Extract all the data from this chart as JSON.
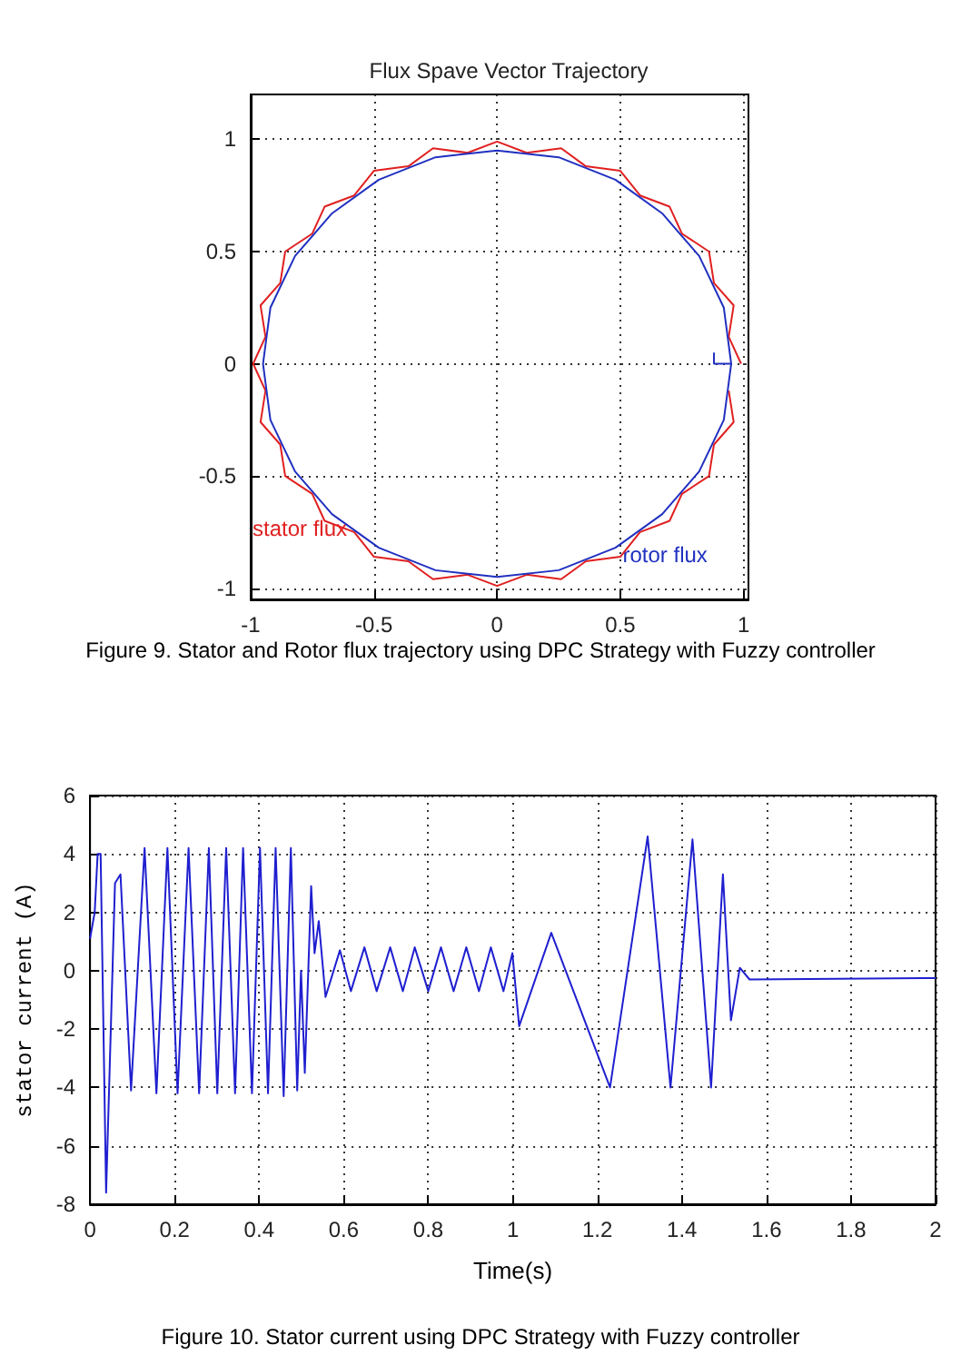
{
  "chart_data": [
    {
      "type": "line",
      "title": "Flux Spave Vector Trajectory",
      "annotations": [
        "Figure 9. Stator and Rotor flux trajectory using DPC Strategy with Fuzzy controller"
      ],
      "xlim": [
        -1,
        1.02
      ],
      "ylim": [
        -1.05,
        1.2
      ],
      "xticks": [
        -1,
        -0.5,
        0,
        0.5,
        1
      ],
      "yticks": [
        -1,
        -0.5,
        0,
        0.5,
        1
      ],
      "grid": true,
      "marker": "none",
      "line_style": "solid",
      "series": [
        {
          "name": "stator flux",
          "color": "#e02020",
          "x": [
            0.99,
            0.94,
            0.96,
            0.88,
            0.86,
            0.75,
            0.7,
            0.58,
            0.5,
            0.36,
            0.26,
            0.12,
            0,
            -0.12,
            -0.26,
            -0.36,
            -0.5,
            -0.58,
            -0.7,
            -0.75,
            -0.86,
            -0.88,
            -0.96,
            -0.94,
            -0.99,
            -0.94,
            -0.96,
            -0.88,
            -0.86,
            -0.75,
            -0.7,
            -0.58,
            -0.5,
            -0.36,
            -0.26,
            -0.12,
            0,
            0.12,
            0.26,
            0.36,
            0.5,
            0.58,
            0.7,
            0.75,
            0.86,
            0.88,
            0.96,
            0.94
          ],
          "values": [
            0,
            0.12,
            0.26,
            0.36,
            0.5,
            0.58,
            0.7,
            0.75,
            0.86,
            0.88,
            0.96,
            0.94,
            0.99,
            0.94,
            0.96,
            0.88,
            0.86,
            0.75,
            0.7,
            0.58,
            0.5,
            0.36,
            0.26,
            0.12,
            0,
            -0.12,
            -0.26,
            -0.36,
            -0.5,
            -0.58,
            -0.7,
            -0.75,
            -0.86,
            -0.88,
            -0.96,
            -0.94,
            -0.99,
            -0.94,
            -0.96,
            -0.88,
            -0.86,
            -0.75,
            -0.7,
            -0.58,
            -0.5,
            -0.36,
            -0.26,
            -0.12
          ]
        },
        {
          "name": "rotor flux",
          "color": "#2030c0",
          "x": [
            0.88,
            0.88,
            0.95,
            0.92,
            0.82,
            0.67,
            0.48,
            0.25,
            0,
            -0.25,
            -0.48,
            -0.67,
            -0.82,
            -0.92,
            -0.95,
            -0.92,
            -0.82,
            -0.67,
            -0.48,
            -0.25,
            0,
            0.25,
            0.48,
            0.67,
            0.82,
            0.92,
            0.95
          ],
          "values": [
            0.05,
            0,
            0,
            0.25,
            0.48,
            0.67,
            0.82,
            0.92,
            0.95,
            0.92,
            0.82,
            0.67,
            0.48,
            0.25,
            0,
            -0.25,
            -0.48,
            -0.67,
            -0.82,
            -0.92,
            -0.95,
            -0.92,
            -0.82,
            -0.67,
            -0.48,
            -0.25,
            0
          ]
        }
      ]
    },
    {
      "type": "line",
      "xlabel": "Time(s)",
      "ylabel": "stator current (A)",
      "annotations": [
        "Figure 10. Stator current using DPC Strategy with Fuzzy controller"
      ],
      "xlim": [
        0,
        2
      ],
      "ylim": [
        -8,
        6
      ],
      "xticks": [
        0,
        0.2,
        0.4,
        0.6,
        0.8,
        1,
        1.2,
        1.4,
        1.6,
        1.8,
        2
      ],
      "yticks": [
        -8,
        -6,
        -4,
        -2,
        0,
        2,
        4,
        6
      ],
      "grid": true,
      "marker": "none",
      "line_style": "solid",
      "series": [
        {
          "color": "#1f1fd0",
          "x": [
            0,
            0.011,
            0.018,
            0.025,
            0.038,
            0.059,
            0.072,
            0.097,
            0.129,
            0.157,
            0.183,
            0.207,
            0.233,
            0.258,
            0.281,
            0.301,
            0.322,
            0.343,
            0.362,
            0.383,
            0.402,
            0.421,
            0.439,
            0.458,
            0.475,
            0.49,
            0.499,
            0.508,
            0.523,
            0.531,
            0.541,
            0.557,
            0.591,
            0.617,
            0.649,
            0.678,
            0.71,
            0.74,
            0.768,
            0.8,
            0.83,
            0.86,
            0.89,
            0.92,
            0.948,
            0.978,
            0.999,
            1.015,
            1.091,
            1.23,
            1.319,
            1.373,
            1.425,
            1.469,
            1.497,
            1.516,
            1.537,
            1.56,
            2
          ],
          "values": [
            1.1,
            2,
            4,
            4,
            -7.6,
            3,
            3.3,
            -4.1,
            4.2,
            -4.2,
            4.2,
            -4.2,
            4.2,
            -4.2,
            4.2,
            -4.2,
            4.2,
            -4.2,
            4.2,
            -4.2,
            4.2,
            -4.2,
            4.2,
            -4.3,
            4.2,
            -4.1,
            0,
            -3.5,
            2.9,
            0.6,
            1.7,
            -0.9,
            0.7,
            -0.7,
            0.8,
            -0.7,
            0.8,
            -0.7,
            0.8,
            -0.7,
            0.8,
            -0.7,
            0.8,
            -0.7,
            0.8,
            -0.7,
            0.6,
            -1.9,
            1.3,
            -4,
            4.6,
            -4,
            4.5,
            -4,
            3.3,
            -1.7,
            0.1,
            -0.3,
            -0.25
          ]
        }
      ]
    }
  ]
}
